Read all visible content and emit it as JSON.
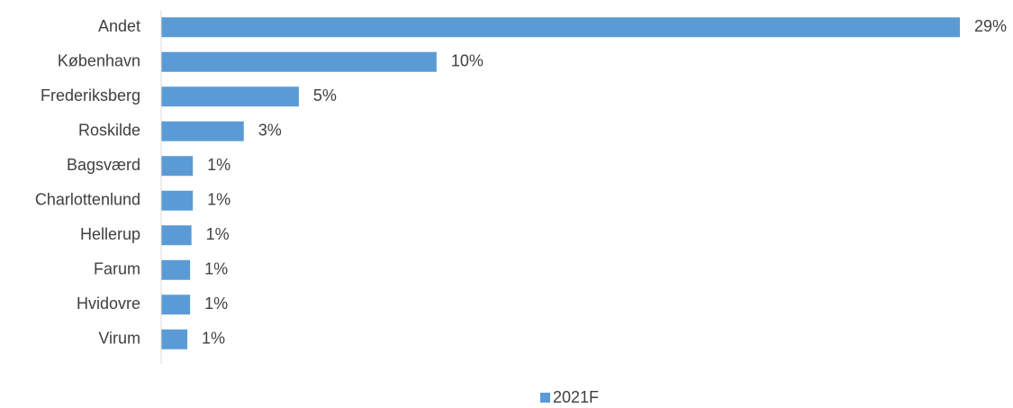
{
  "chart_data": {
    "type": "bar",
    "orientation": "horizontal",
    "categories": [
      "Andet",
      "København",
      "Frederiksberg",
      "Roskilde",
      "Bagsværd",
      "Charlottenlund",
      "Hellerup",
      "Farum",
      "Hvidovre",
      "Virum"
    ],
    "series": [
      {
        "name": "2021F",
        "color": "#5B9BD5",
        "values": [
          29,
          10,
          5,
          3,
          1.15,
          1.15,
          1.1,
          1.05,
          1.05,
          0.95
        ],
        "labels": [
          "29%",
          "10%",
          "5%",
          "3%",
          "1%",
          "1%",
          "1%",
          "1%",
          "1%",
          "1%"
        ]
      }
    ],
    "xlim": [
      0,
      29
    ],
    "grid": false,
    "legend": "bottom"
  }
}
